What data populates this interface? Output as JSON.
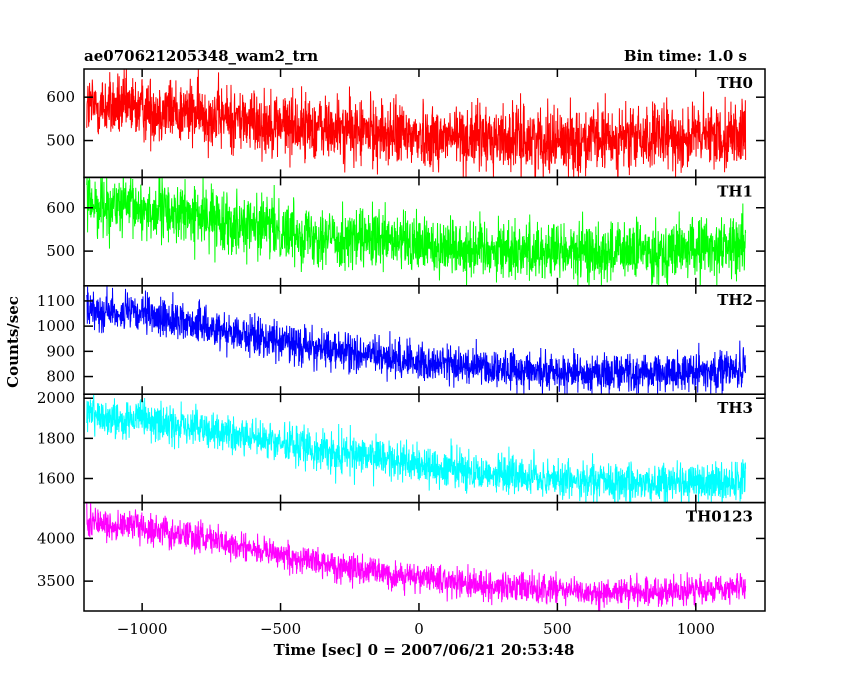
{
  "header": {
    "title": "ae070621205348_wam2_trn",
    "bin_time": "Bin time: 1.0 s"
  },
  "chart_data": {
    "type": "line",
    "xlabel": "Time [sec] 0 = 2007/06/21 20:53:48",
    "ylabel": "Counts/sec",
    "xlim": [
      -1210,
      1250
    ],
    "x_ticks": [
      -1000,
      -500,
      0,
      500,
      1000
    ],
    "x_tick_labels": [
      "−1000",
      "−500",
      "0",
      "500",
      "1000"
    ],
    "data_x_range": [
      -1200,
      1180
    ],
    "panels": [
      {
        "name": "TH0",
        "color": "#ff0000",
        "ylim": [
          415,
          665
        ],
        "y_ticks": [
          500,
          600
        ],
        "y_tick_labels": [
          "500",
          "600"
        ],
        "trend": [
          [
            -1200,
            580
          ],
          [
            -900,
            570
          ],
          [
            -600,
            545
          ],
          [
            -300,
            525
          ],
          [
            0,
            510
          ],
          [
            300,
            505
          ],
          [
            600,
            500
          ],
          [
            900,
            505
          ],
          [
            1180,
            515
          ]
        ],
        "noise": 38
      },
      {
        "name": "TH1",
        "color": "#00ff00",
        "ylim": [
          420,
          670
        ],
        "y_ticks": [
          500,
          600
        ],
        "y_tick_labels": [
          "500",
          "600"
        ],
        "trend": [
          [
            -1200,
            610
          ],
          [
            -900,
            590
          ],
          [
            -600,
            560
          ],
          [
            -300,
            530
          ],
          [
            0,
            515
          ],
          [
            300,
            505
          ],
          [
            600,
            495
          ],
          [
            900,
            500
          ],
          [
            1180,
            515
          ]
        ],
        "noise": 35
      },
      {
        "name": "TH2",
        "color": "#0000ff",
        "ylim": [
          730,
          1160
        ],
        "y_ticks": [
          800,
          900,
          1000,
          1100
        ],
        "y_tick_labels": [
          "800",
          "900",
          "1000",
          "1100"
        ],
        "trend": [
          [
            -1200,
            1070
          ],
          [
            -900,
            1030
          ],
          [
            -600,
            960
          ],
          [
            -300,
            900
          ],
          [
            0,
            860
          ],
          [
            300,
            830
          ],
          [
            600,
            815
          ],
          [
            900,
            815
          ],
          [
            1180,
            830
          ]
        ],
        "noise": 38
      },
      {
        "name": "TH3",
        "color": "#00ffff",
        "ylim": [
          1480,
          2020
        ],
        "y_ticks": [
          1600,
          1800,
          2000
        ],
        "y_tick_labels": [
          "1600",
          "1800",
          "2000"
        ],
        "trend": [
          [
            -1200,
            1920
          ],
          [
            -900,
            1870
          ],
          [
            -600,
            1800
          ],
          [
            -300,
            1730
          ],
          [
            0,
            1670
          ],
          [
            300,
            1620
          ],
          [
            600,
            1585
          ],
          [
            900,
            1575
          ],
          [
            1180,
            1590
          ]
        ],
        "noise": 50
      },
      {
        "name": "TH0123",
        "color": "#ff00ff",
        "ylim": [
          3150,
          4420
        ],
        "y_ticks": [
          3500,
          4000
        ],
        "y_tick_labels": [
          "3500",
          "4000"
        ],
        "trend": [
          [
            -1200,
            4200
          ],
          [
            -900,
            4080
          ],
          [
            -600,
            3880
          ],
          [
            -300,
            3680
          ],
          [
            0,
            3530
          ],
          [
            300,
            3430
          ],
          [
            600,
            3370
          ],
          [
            900,
            3370
          ],
          [
            1180,
            3440
          ]
        ],
        "noise": 85
      }
    ]
  }
}
